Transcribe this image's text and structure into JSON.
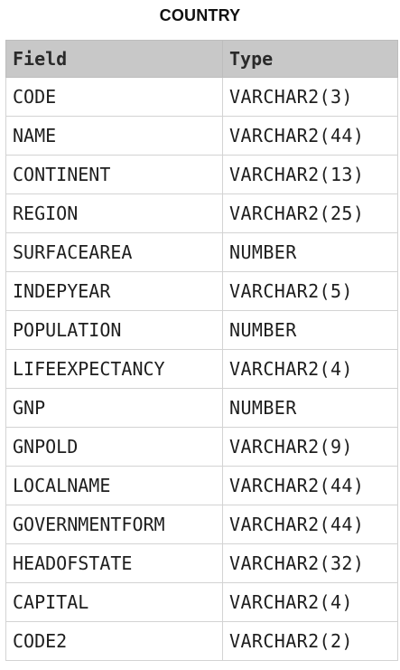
{
  "title": "COUNTRY",
  "table": {
    "headers": [
      "Field",
      "Type"
    ],
    "rows": [
      {
        "field": "CODE",
        "type": "VARCHAR2(3)"
      },
      {
        "field": "NAME",
        "type": "VARCHAR2(44)"
      },
      {
        "field": "CONTINENT",
        "type": "VARCHAR2(13)"
      },
      {
        "field": "REGION",
        "type": "VARCHAR2(25)"
      },
      {
        "field": "SURFACEAREA",
        "type": "NUMBER"
      },
      {
        "field": "INDEPYEAR",
        "type": "VARCHAR2(5)"
      },
      {
        "field": "POPULATION",
        "type": "NUMBER"
      },
      {
        "field": "LIFEEXPECTANCY",
        "type": "VARCHAR2(4)"
      },
      {
        "field": "GNP",
        "type": "NUMBER"
      },
      {
        "field": "GNPOLD",
        "type": "VARCHAR2(9)"
      },
      {
        "field": "LOCALNAME",
        "type": "VARCHAR2(44)"
      },
      {
        "field": "GOVERNMENTFORM",
        "type": "VARCHAR2(44)"
      },
      {
        "field": "HEADOFSTATE",
        "type": "VARCHAR2(32)"
      },
      {
        "field": "CAPITAL",
        "type": "VARCHAR2(4)"
      },
      {
        "field": "CODE2",
        "type": "VARCHAR2(2)"
      }
    ]
  }
}
